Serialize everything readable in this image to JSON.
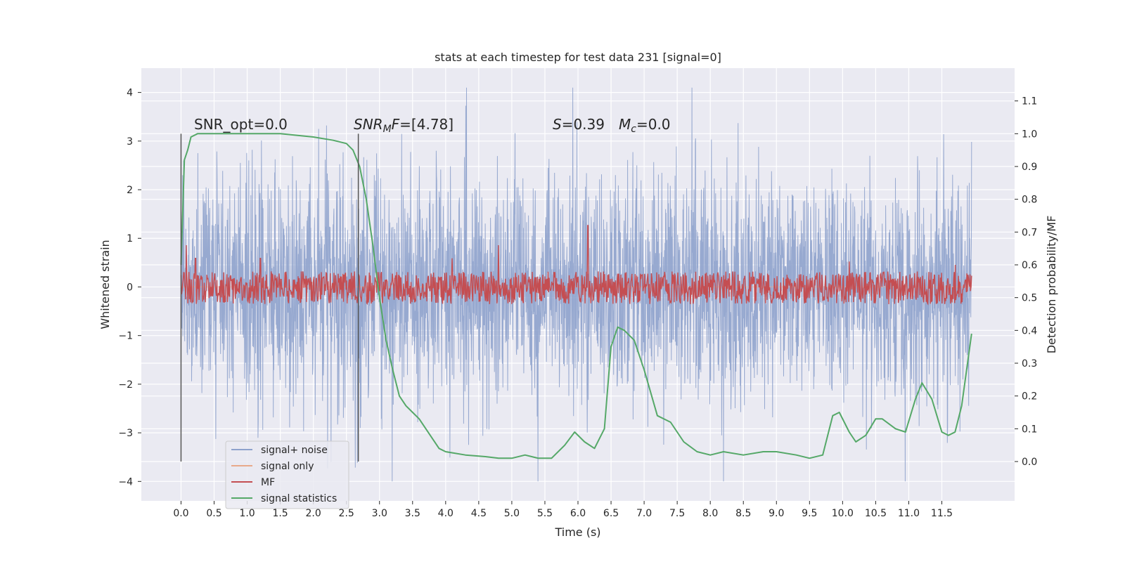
{
  "chart_data": {
    "type": "line",
    "title": "stats at each timestep for test data 231 [signal=0]",
    "xlabel": "Time (s)",
    "ylabel": "Whitened strain",
    "ylabel_right": "Detection probability/MF",
    "xlim": [
      -0.6,
      12.6
    ],
    "ylim": [
      -4.4,
      4.5
    ],
    "ylim_right": [
      -0.12,
      1.2
    ],
    "grid": true,
    "legend_position": "lower-left",
    "x_ticks": [
      "0.0",
      "0.5",
      "1.0",
      "1.5",
      "2.0",
      "2.5",
      "3.0",
      "3.5",
      "4.0",
      "4.5",
      "5.0",
      "5.5",
      "6.0",
      "6.5",
      "7.0",
      "7.5",
      "8.0",
      "8.5",
      "9.0",
      "9.5",
      "10.0",
      "10.5",
      "11.0",
      "11.5"
    ],
    "y_ticks": [
      "4",
      "3",
      "2",
      "1",
      "0",
      "−1",
      "−2",
      "−3",
      "−4"
    ],
    "y_ticks_right": [
      "1.1",
      "1.0",
      "0.9",
      "0.8",
      "0.7",
      "0.6",
      "0.5",
      "0.4",
      "0.3",
      "0.2",
      "0.1",
      "0.0"
    ],
    "annotations": {
      "snr_opt": "SNR_opt=0.0",
      "snr_mf_main": "SNR",
      "snr_mf_sub": "M",
      "snr_mf_tail": "F",
      "snr_mf_value": "=[4.78]",
      "s_symbol": "S",
      "s_value": "=0.39",
      "mc_symbol": "M",
      "mc_sub": "c",
      "mc_value": "=0.0"
    },
    "vlines_x": [
      0.0,
      2.68
    ],
    "series": [
      {
        "name": "signal+ noise",
        "color": "#8ea2cc",
        "style": "dense random noise, amplitude ~ ±2.5 with peaks to ±4",
        "x_range": [
          0.0,
          11.95
        ],
        "points": 3000
      },
      {
        "name": "signal only",
        "color": "#e8a98a",
        "values": "flat at 0"
      },
      {
        "name": "MF",
        "color": "#c44e52",
        "axis": "right",
        "baseline": 0.53,
        "spread": 0.05,
        "peaks": [
          [
            0.08,
            0.66
          ],
          [
            0.22,
            0.62
          ],
          [
            1.2,
            0.62
          ],
          [
            4.1,
            0.62
          ],
          [
            4.8,
            0.66
          ],
          [
            6.15,
            0.72
          ],
          [
            10.1,
            0.61
          ],
          [
            11.7,
            0.6
          ]
        ]
      },
      {
        "name": "signal statistics",
        "color": "#55a868",
        "axis": "right",
        "x": [
          0.0,
          0.05,
          0.1,
          0.15,
          0.25,
          0.5,
          1.0,
          1.5,
          2.0,
          2.3,
          2.5,
          2.6,
          2.7,
          2.8,
          2.9,
          3.0,
          3.1,
          3.2,
          3.3,
          3.4,
          3.5,
          3.6,
          3.7,
          3.8,
          3.9,
          4.0,
          4.3,
          4.6,
          4.8,
          5.0,
          5.2,
          5.4,
          5.6,
          5.8,
          5.95,
          6.1,
          6.25,
          6.4,
          6.5,
          6.6,
          6.7,
          6.85,
          7.0,
          7.2,
          7.4,
          7.6,
          7.8,
          8.0,
          8.2,
          8.5,
          8.8,
          9.0,
          9.3,
          9.5,
          9.7,
          9.85,
          9.95,
          10.1,
          10.2,
          10.35,
          10.5,
          10.6,
          10.8,
          10.95,
          11.1,
          11.2,
          11.35,
          11.5,
          11.6,
          11.7,
          11.8,
          11.95
        ],
        "values": [
          0.6,
          0.92,
          0.95,
          0.99,
          1.0,
          1.0,
          1.0,
          1.0,
          0.99,
          0.98,
          0.97,
          0.95,
          0.9,
          0.8,
          0.66,
          0.5,
          0.37,
          0.28,
          0.2,
          0.17,
          0.15,
          0.13,
          0.1,
          0.07,
          0.04,
          0.03,
          0.02,
          0.015,
          0.01,
          0.01,
          0.02,
          0.01,
          0.01,
          0.05,
          0.09,
          0.06,
          0.04,
          0.1,
          0.35,
          0.41,
          0.4,
          0.37,
          0.28,
          0.14,
          0.12,
          0.06,
          0.03,
          0.02,
          0.03,
          0.02,
          0.03,
          0.03,
          0.02,
          0.01,
          0.02,
          0.14,
          0.15,
          0.09,
          0.06,
          0.08,
          0.13,
          0.13,
          0.1,
          0.09,
          0.19,
          0.24,
          0.19,
          0.09,
          0.08,
          0.09,
          0.17,
          0.39
        ]
      }
    ]
  },
  "colors": {
    "plot_bg": "#eaeaf2",
    "grid": "#ffffff",
    "vline": "#555555"
  }
}
